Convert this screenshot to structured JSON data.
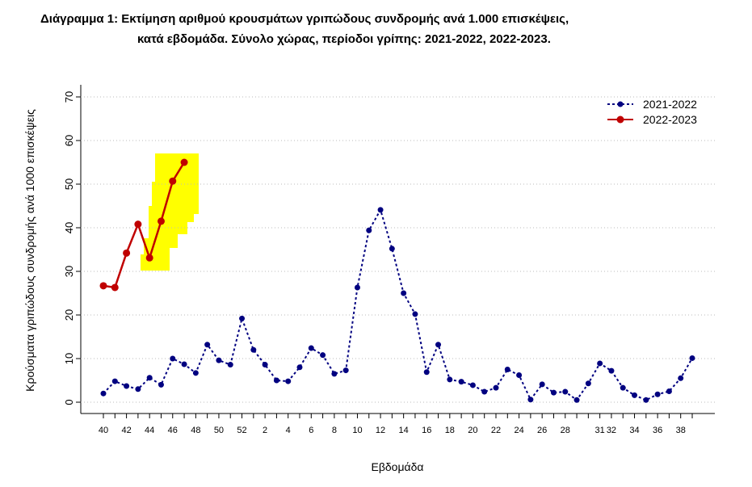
{
  "chart_data": {
    "type": "line",
    "title": "Διάγραμμα 1: Εκτίμηση αριθμού κρουσμάτων γριπώδους συνδρομής ανά 1.000 επισκέψεις,",
    "subtitle": "κατά εβδομάδα. Σύνολο χώρας, περίοδοι γρίπης:  2021-2022, 2022-2023.",
    "x_label": "Εβδομάδα",
    "y_label": "Κρούσματα γριπώδους συνδρομής ανά 1000 επισκέψεις",
    "categories": [
      "40",
      null,
      "42",
      null,
      "44",
      null,
      "46",
      null,
      "48",
      null,
      "50",
      null,
      "52",
      null,
      "2",
      null,
      "4",
      null,
      "6",
      null,
      "8",
      null,
      "10",
      null,
      "12",
      null,
      "14",
      null,
      "16",
      null,
      "18",
      null,
      "20",
      null,
      "22",
      null,
      "24",
      null,
      "26",
      null,
      "28",
      null,
      null,
      "31",
      "32",
      null,
      "34",
      null,
      "36",
      null,
      "38",
      null
    ],
    "series": [
      {
        "name": "2021-2022",
        "color": "#000080",
        "dashed": true,
        "values": [
          2,
          4.8,
          3.7,
          3,
          5.6,
          4,
          10,
          8.7,
          6.7,
          13.2,
          9.6,
          8.6,
          19.2,
          12,
          8.6,
          5,
          4.8,
          8,
          12.4,
          10.8,
          6.5,
          7.3,
          26.3,
          39.4,
          44.1,
          35.2,
          25,
          20.2,
          6.9,
          13.2,
          5.2,
          4.7,
          3.9,
          2.4,
          3.3,
          7.5,
          6.2,
          0.6,
          4.1,
          2.2,
          2.4,
          0.5,
          4.3,
          8.9,
          7.2,
          3.3,
          1.6,
          0.5,
          1.8,
          2.5,
          5.5,
          10.1
        ]
      },
      {
        "name": "2022-2023",
        "color": "#c00000",
        "dashed": false,
        "values": [
          26.7,
          26.3,
          34.2,
          40.8,
          33.1,
          41.5,
          50.7,
          55,
          null,
          null,
          null,
          null,
          null,
          null,
          null,
          null,
          null,
          null,
          null,
          null,
          null,
          null,
          null,
          null,
          null,
          null,
          null,
          null,
          null,
          null,
          null,
          null,
          null,
          null,
          null,
          null,
          null,
          null,
          null,
          null,
          null,
          null,
          null,
          null,
          null,
          null,
          null,
          null,
          null,
          null,
          null,
          null
        ]
      }
    ],
    "ylim": [
      0,
      70
    ],
    "yticks": [
      0,
      10,
      20,
      30,
      40,
      50,
      60,
      70
    ],
    "grid": true,
    "legend_position": "top-right"
  }
}
